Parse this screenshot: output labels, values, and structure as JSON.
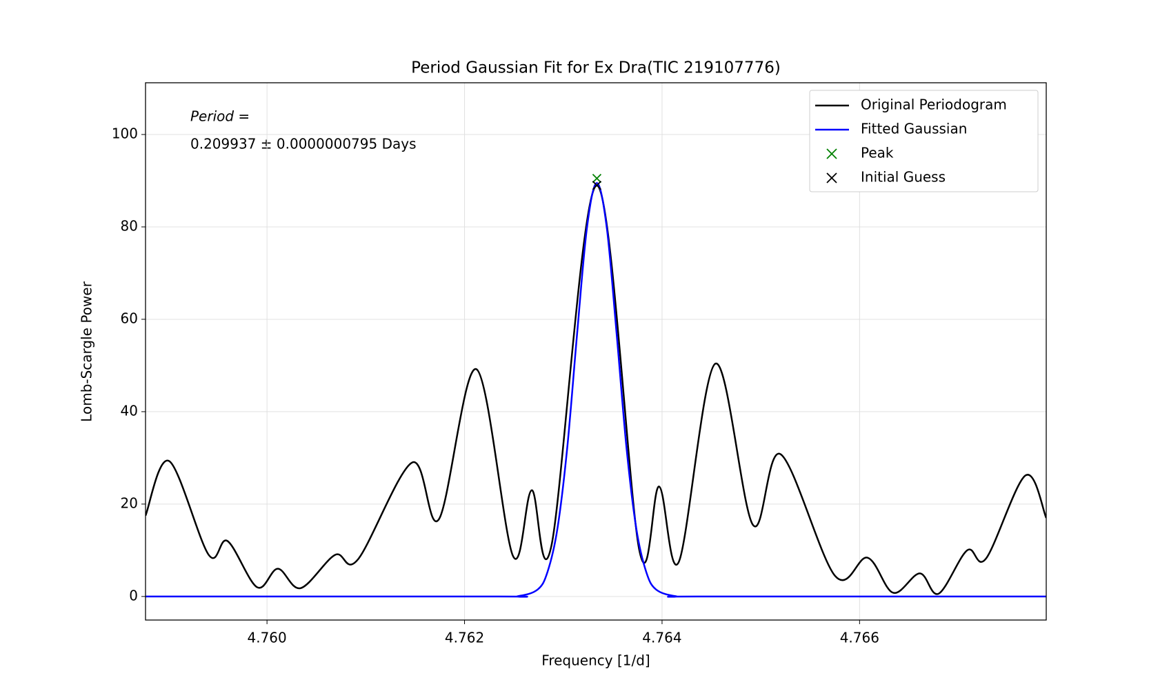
{
  "chart_data": {
    "type": "line",
    "title": "Period Gaussian Fit for Ex Dra(TIC 219107776)",
    "xlabel": "Frequency [1/d]",
    "ylabel": "Lomb-Scargle Power",
    "annotation": [
      "Period =",
      "0.209937 ± 0.0000000795 Days"
    ],
    "xlim": [
      4.75877,
      4.76789
    ],
    "ylim": [
      -5.1,
      111.2
    ],
    "xticks": [
      {
        "value": 4.76,
        "label": "4.760"
      },
      {
        "value": 4.762,
        "label": "4.762"
      },
      {
        "value": 4.764,
        "label": "4.764"
      },
      {
        "value": 4.766,
        "label": "4.766"
      }
    ],
    "yticks": [
      0,
      20,
      40,
      60,
      80,
      100
    ],
    "grid": true,
    "legend": "upper right",
    "series": [
      {
        "name": "Original Periodogram",
        "color": "#000000",
        "x": [
          4.75877,
          4.75901,
          4.75941,
          4.7596,
          4.7599,
          4.76011,
          4.76034,
          4.76069,
          4.76092,
          4.76147,
          4.76174,
          4.76212,
          4.76249,
          4.76268,
          4.76288,
          4.76334,
          4.76377,
          4.76397,
          4.76417,
          4.76454,
          4.76492,
          4.7652,
          4.76575,
          4.76608,
          4.76634,
          4.76661,
          4.7668,
          4.76709,
          4.76728,
          4.76768,
          4.76789
        ],
        "values": [
          17.5,
          29.3,
          9,
          12,
          2,
          6,
          1.8,
          9,
          8,
          29,
          16.7,
          49.2,
          8.8,
          23,
          11,
          89,
          10,
          23.8,
          7.5,
          50.4,
          15.5,
          30.8,
          4.5,
          8.4,
          0.8,
          5,
          0.6,
          10,
          8.2,
          26.2,
          17
        ]
      },
      {
        "name": "Fitted Gaussian",
        "color": "#0000ff",
        "x": [
          4.75877,
          4.7623,
          4.76254,
          4.76274,
          4.76284,
          4.76294,
          4.76304,
          4.76314,
          4.76324,
          4.76334,
          4.76344,
          4.76354,
          4.76364,
          4.76374,
          4.76384,
          4.76394,
          4.76414,
          4.7644,
          4.76789
        ],
        "values": [
          0,
          0,
          0.06,
          1.5,
          5.3,
          14.6,
          32.2,
          56.9,
          79.9,
          89.5,
          79.9,
          56.9,
          32.2,
          14.6,
          5.3,
          1.5,
          0.06,
          0,
          0
        ]
      }
    ],
    "markers": [
      {
        "name": "Peak",
        "color": "#008000",
        "x": 4.76334,
        "y": 90.5
      },
      {
        "name": "Initial Guess",
        "color": "#000000",
        "x": 4.76334,
        "y": 89
      }
    ]
  }
}
